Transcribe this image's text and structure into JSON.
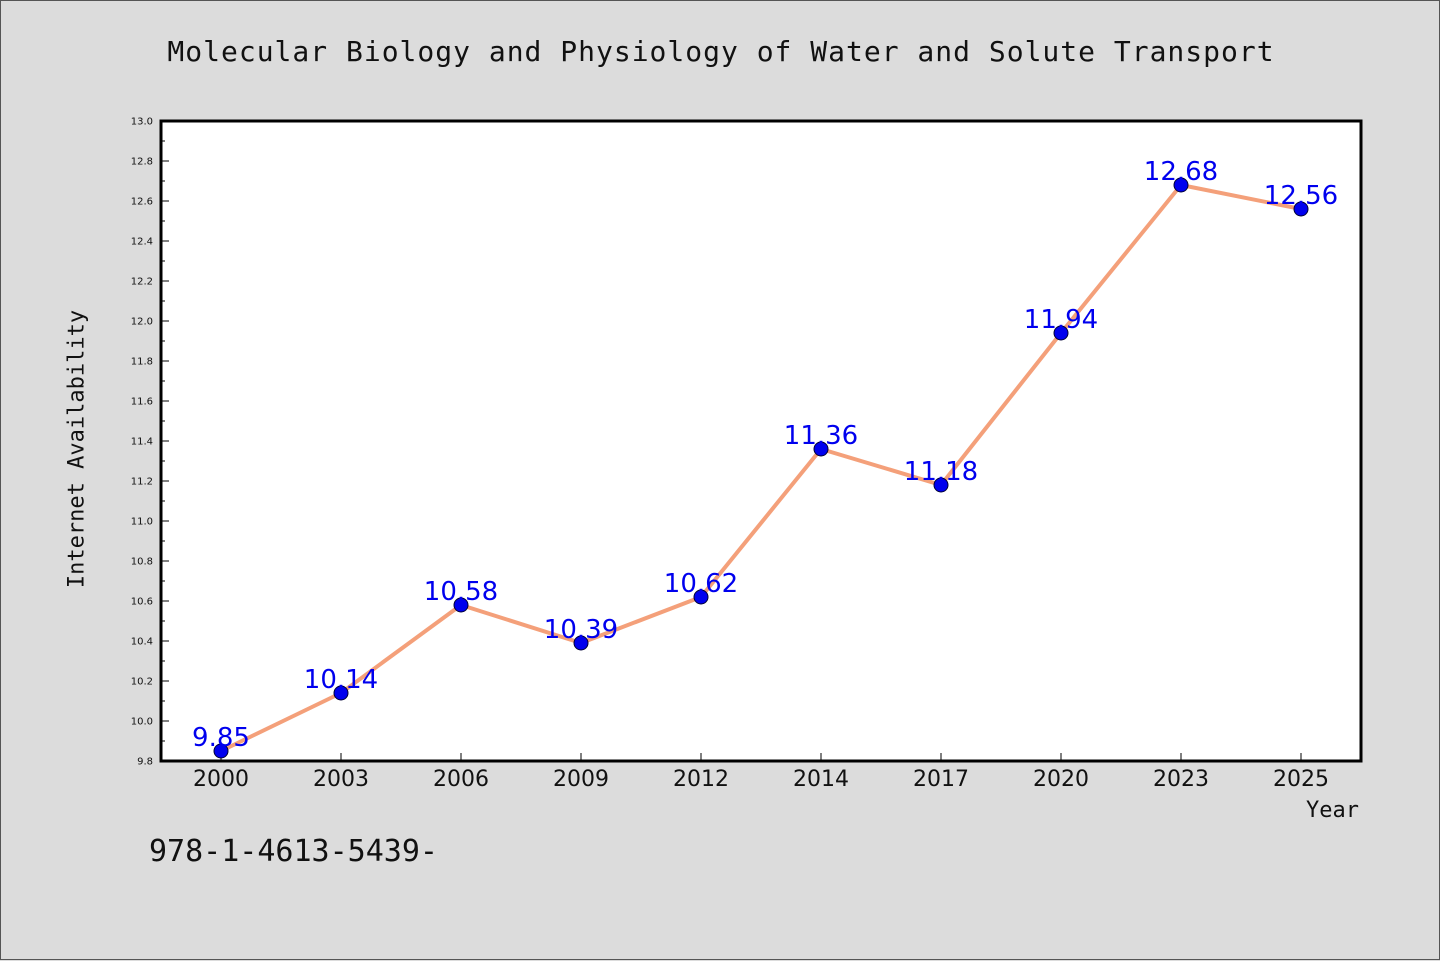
{
  "chart_data": {
    "type": "line",
    "title": "Molecular Biology and Physiology of Water and Solute Transport",
    "xlabel": "Year",
    "ylabel": "Internet Availability",
    "categories": [
      "2000",
      "2003",
      "2006",
      "2009",
      "2012",
      "2014",
      "2017",
      "2020",
      "2023",
      "2025"
    ],
    "series": [
      {
        "values": [
          9.85,
          10.14,
          10.58,
          10.39,
          10.62,
          11.36,
          11.18,
          11.94,
          12.68,
          12.56
        ],
        "line_color": "#f4a07a",
        "marker_color": "#0000ee",
        "label_color": "#0000ee"
      }
    ],
    "ylim": [
      9.8,
      13.0
    ],
    "yticks": [
      "9.8",
      "10.0",
      "10.2",
      "10.4",
      "10.6",
      "10.8",
      "11.0",
      "11.2",
      "11.4",
      "11.6",
      "11.8",
      "12.0",
      "12.2",
      "12.4",
      "12.6",
      "12.8",
      "13.0"
    ],
    "grid": false,
    "legend": "none"
  },
  "footer": {
    "isbn": "978-1-4613-5439-"
  }
}
